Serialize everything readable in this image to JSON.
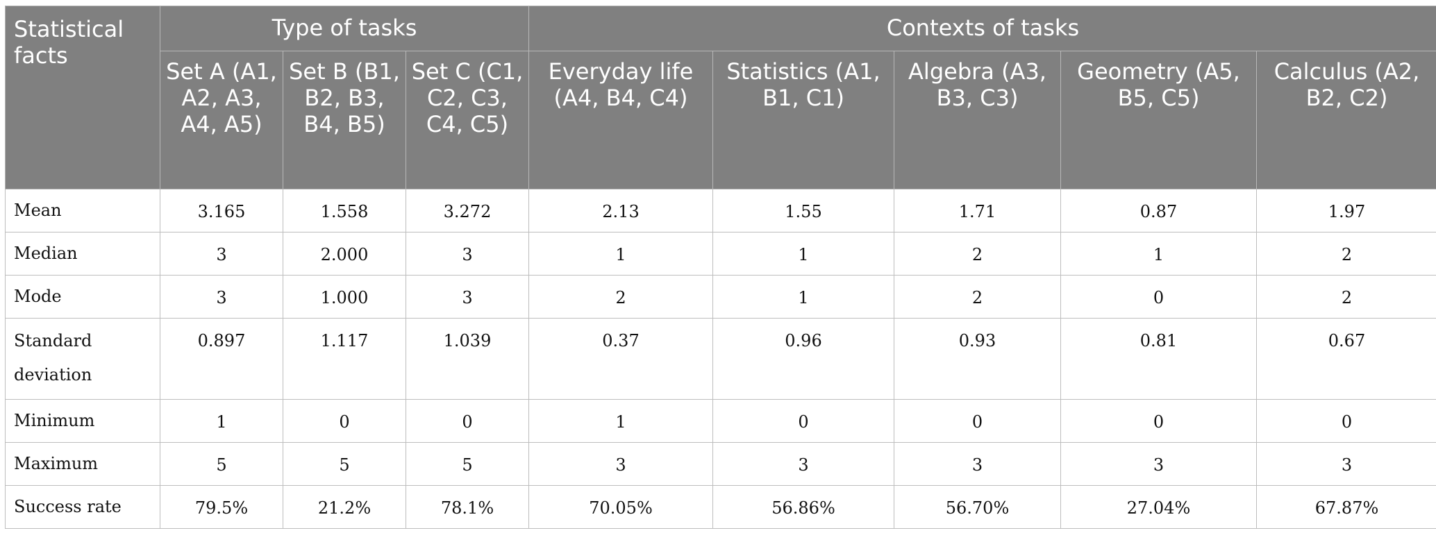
{
  "table": {
    "corner_label": "Statistical facts",
    "groups": [
      "Type of tasks",
      "Contexts of tasks"
    ],
    "columns": [
      "Set A (A1, A2, A3, A4, A5)",
      "Set B (B1, B2, B3, B4, B5)",
      "Set C (C1, C2, C3, C4, C5)",
      "Everyday life (A4, B4, C4)",
      "Statistics (A1, B1, C1)",
      "Algebra (A3, B3, C3)",
      "Geometry (A5, B5, C5)",
      "Calculus (A2, B2, C2)"
    ],
    "rows": [
      {
        "label": "Mean",
        "values": [
          "3.165",
          "1.558",
          "3.272",
          "2.13",
          "1.55",
          "1.71",
          "0.87",
          "1.97"
        ]
      },
      {
        "label": "Median",
        "values": [
          "3",
          "2.000",
          "3",
          "1",
          "1",
          "2",
          "1",
          "2"
        ]
      },
      {
        "label": "Mode",
        "values": [
          "3",
          "1.000",
          "3",
          "2",
          "1",
          "2",
          "0",
          "2"
        ]
      },
      {
        "label": "Standard deviation",
        "values": [
          "0.897",
          "1.117",
          "1.039",
          "0.37",
          "0.96",
          "0.93",
          "0.81",
          "0.67"
        ]
      },
      {
        "label": "Minimum",
        "values": [
          "1",
          "0",
          "0",
          "1",
          "0",
          "0",
          "0",
          "0"
        ]
      },
      {
        "label": "Maximum",
        "values": [
          "5",
          "5",
          "5",
          "3",
          "3",
          "3",
          "3",
          "3"
        ]
      },
      {
        "label": "Success rate",
        "values": [
          "79.5%",
          "21.2%",
          "78.1%",
          "70.05%",
          "56.86%",
          "56.70%",
          "27.04%",
          "67.87%"
        ]
      }
    ]
  }
}
